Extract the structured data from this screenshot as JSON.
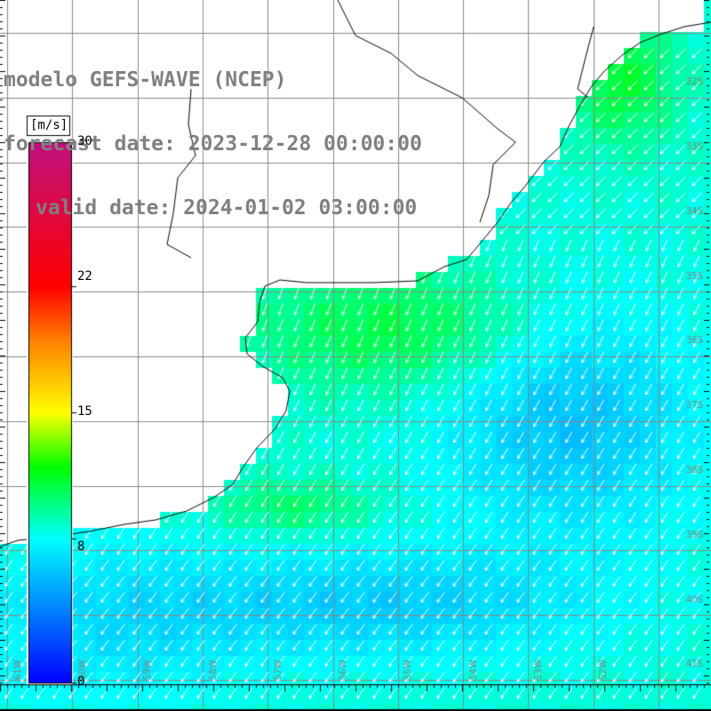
{
  "title": {
    "line1": "modelo GEFS-WAVE (NCEP)",
    "line2": "forecast date: 2023-12-28 00:00:00",
    "line3": "valid date: 2024-01-02 03:00:00"
  },
  "colorbar": {
    "unit": "[m/s]",
    "labels": [
      "30",
      "22",
      "15",
      "8",
      "0"
    ],
    "label_values": [
      30,
      22,
      15,
      8,
      0
    ],
    "vmin": 0,
    "vmax": 30,
    "stops": [
      {
        "v": 0,
        "color": "#0000ff"
      },
      {
        "v": 4,
        "color": "#0080ff"
      },
      {
        "v": 8,
        "color": "#00ffff"
      },
      {
        "v": 12,
        "color": "#00ff00"
      },
      {
        "v": 15,
        "color": "#ffff00"
      },
      {
        "v": 19,
        "color": "#ff8000"
      },
      {
        "v": 22,
        "color": "#ff0000"
      },
      {
        "v": 30,
        "color": "#c0107f"
      }
    ]
  },
  "latitude_labels": [
    "32S",
    "33S",
    "34S",
    "35S",
    "36S",
    "37S",
    "38S",
    "39S",
    "40S",
    "41S"
  ],
  "longitude_labels": [
    "61W",
    "60W",
    "59W",
    "58W",
    "57W",
    "56W",
    "55W",
    "54W",
    "53W",
    "52W"
  ],
  "colors": {
    "land": "#ffffff",
    "coast": "#000000",
    "grid": "#888888",
    "arrow": "#ffffff",
    "label": "#808080"
  },
  "chart_data": {
    "type": "heatmap",
    "variable": "wind speed with direction arrows",
    "unit": "m/s",
    "value_range": [
      0,
      30
    ],
    "typical_values": {
      "near_coast_north": 10,
      "central_band": 10,
      "offshore_south_east": 6,
      "far_south": 5
    },
    "wind_direction": "predominantly from NE toward SW, turning to from N toward S offshore"
  }
}
